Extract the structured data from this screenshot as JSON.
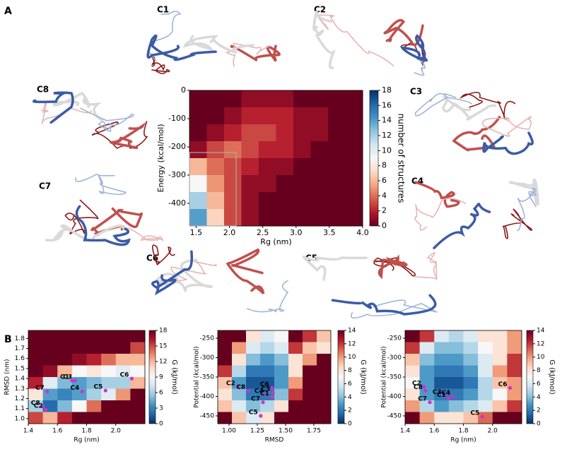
{
  "panels": [
    "A",
    "B"
  ],
  "structures": [
    "C1",
    "C2",
    "C3",
    "C4",
    "C5",
    "C6",
    "C7",
    "C8"
  ],
  "chart_data": [
    {
      "type": "heatmap",
      "xlabel": "Rg (nm)",
      "ylabel": "Energy (kcal/mol)",
      "clabel": "number of structures",
      "xlim": [
        1.4,
        4.0
      ],
      "xticks": [
        1.5,
        {
          "value": 2,
          "label": "2.0"
        },
        2.5,
        {
          "value": 3,
          "label": "3.0"
        },
        3.5,
        {
          "value": 4,
          "label": "4.0"
        }
      ],
      "ylim": [
        -480,
        0
      ],
      "yticks": [
        0,
        -100,
        -200,
        -300,
        -400
      ],
      "clim": [
        0,
        18
      ],
      "cticks": [
        0,
        2,
        4,
        6,
        8,
        10,
        12,
        14,
        16,
        18
      ],
      "colormap": [
        "#67001f",
        "#b2182b",
        "#d6604d",
        "#f4a582",
        "#fddbc7",
        "#f7f7f7",
        "#d1e5f0",
        "#92c5de",
        "#4393c3",
        "#2166ac",
        "#053061"
      ],
      "highlight": {
        "xlim": [
          1.4,
          2.1
        ],
        "ylim": [
          -480,
          -220
        ]
      },
      "z": [
        [
          0,
          0,
          0,
          1,
          1,
          1,
          0,
          0,
          0,
          0
        ],
        [
          0,
          0,
          1,
          2,
          2,
          2,
          1,
          1,
          0,
          0
        ],
        [
          0,
          1,
          2,
          3,
          3,
          2,
          1,
          1,
          0,
          0
        ],
        [
          1,
          3,
          4,
          3,
          2,
          2,
          1,
          0,
          0,
          0
        ],
        [
          6,
          4,
          3,
          2,
          1,
          1,
          0,
          0,
          0,
          0
        ],
        [
          9,
          5,
          3,
          1,
          1,
          0,
          0,
          0,
          0,
          0
        ],
        [
          12,
          6,
          3,
          1,
          0,
          0,
          0,
          0,
          0,
          0
        ],
        [
          14,
          7,
          3,
          1,
          0,
          0,
          0,
          0,
          0,
          0
        ]
      ],
      "points": []
    },
    {
      "type": "heatmap",
      "xlabel": "Rg (nm)",
      "ylabel": "RMSD (nm)",
      "clabel": "G (kJ/mol)",
      "xlim": [
        1.4,
        2.2
      ],
      "xticks": [
        1.4,
        1.6,
        1.8,
        {
          "value": 2,
          "label": "2.0"
        }
      ],
      "ylim": [
        0.95,
        1.88
      ],
      "yticks": [
        {
          "value": 1,
          "label": "1.0"
        },
        1.1,
        1.2,
        1.3,
        1.4,
        1.5,
        1.6,
        1.7,
        1.8
      ],
      "clim": [
        0,
        18
      ],
      "cticks": [
        0,
        3,
        6,
        9,
        12,
        15,
        18
      ],
      "colormap": [
        "#053061",
        "#2166ac",
        "#4393c3",
        "#92c5de",
        "#d1e5f0",
        "#f7f7f7",
        "#fddbc7",
        "#f4a582",
        "#d6604d",
        "#b2182b",
        "#67001f"
      ],
      "point_color": "#cc33cc",
      "z": [
        [
          18,
          18,
          18,
          18,
          18,
          18,
          18,
          18
        ],
        [
          18,
          18,
          18,
          18,
          18,
          18,
          18,
          15
        ],
        [
          18,
          18,
          18,
          17,
          16,
          14,
          12,
          12
        ],
        [
          18,
          17,
          12,
          9,
          10,
          9,
          8,
          9
        ],
        [
          16,
          8,
          5,
          4,
          5,
          6,
          6,
          12
        ],
        [
          10,
          4,
          3,
          4,
          6,
          8,
          13,
          18
        ],
        [
          6,
          2,
          5,
          9,
          14,
          18,
          18,
          18
        ],
        [
          15,
          12,
          16,
          18,
          18,
          18,
          18,
          18
        ]
      ],
      "points": [
        {
          "label": "C1",
          "x": 1.7,
          "y": 1.38
        },
        {
          "label": "C3",
          "x": 1.72,
          "y": 1.38
        },
        {
          "label": "C7",
          "x": 1.53,
          "y": 1.27
        },
        {
          "label": "C4",
          "x": 1.77,
          "y": 1.27
        },
        {
          "label": "C5",
          "x": 1.93,
          "y": 1.28
        },
        {
          "label": "C6",
          "x": 2.11,
          "y": 1.4
        },
        {
          "label": "C8",
          "x": 1.5,
          "y": 1.12
        },
        {
          "label": "C2",
          "x": 1.52,
          "y": 1.09
        }
      ]
    },
    {
      "type": "heatmap",
      "xlabel": "RMSD",
      "ylabel": "Potential (kcal/mol)",
      "clabel": "G (kJ/mol)",
      "xlim": [
        0.9,
        1.9
      ],
      "xticks": [
        {
          "value": 1,
          "label": "1.00"
        },
        1.25,
        {
          "value": 1.5,
          "label": "1.50"
        },
        1.75
      ],
      "ylim": [
        -470,
        -230
      ],
      "yticks": [
        -250,
        -300,
        -350,
        -400,
        -450
      ],
      "clim": [
        0,
        14
      ],
      "cticks": [
        0,
        2,
        4,
        6,
        8,
        10,
        12,
        14
      ],
      "colormap": [
        "#053061",
        "#2166ac",
        "#4393c3",
        "#92c5de",
        "#d1e5f0",
        "#f7f7f7",
        "#fddbc7",
        "#f4a582",
        "#d6604d",
        "#b2182b",
        "#67001f"
      ],
      "point_color": "#cc33cc",
      "z": [
        [
          14,
          14,
          8,
          6,
          7,
          14,
          12,
          9
        ],
        [
          14,
          10,
          6,
          5,
          6,
          12,
          9,
          8
        ],
        [
          14,
          8,
          4,
          3,
          4,
          8,
          10,
          14
        ],
        [
          12,
          5,
          2,
          2,
          3,
          8,
          14,
          14
        ],
        [
          9,
          3,
          1,
          1,
          3,
          10,
          14,
          14
        ],
        [
          8,
          4,
          2,
          2,
          4,
          12,
          14,
          14
        ],
        [
          9,
          6,
          4,
          5,
          8,
          14,
          14,
          14
        ],
        [
          14,
          9,
          6,
          8,
          14,
          14,
          14,
          14
        ]
      ],
      "points": [
        {
          "label": "C2",
          "x": 1.08,
          "y": -375
        },
        {
          "label": "C8",
          "x": 1.17,
          "y": -385
        },
        {
          "label": "C6",
          "x": 1.38,
          "y": -378
        },
        {
          "label": "C3",
          "x": 1.39,
          "y": -390
        },
        {
          "label": "C4",
          "x": 1.33,
          "y": -395
        },
        {
          "label": "C1",
          "x": 1.38,
          "y": -402
        },
        {
          "label": "C7",
          "x": 1.3,
          "y": -415
        },
        {
          "label": "C5",
          "x": 1.28,
          "y": -450
        }
      ]
    },
    {
      "type": "heatmap",
      "xlabel": "Rg (nm)",
      "ylabel": "Potential (kcal/mol)",
      "clabel": "G (kJ/mol)",
      "xlim": [
        1.4,
        2.2
      ],
      "xticks": [
        1.4,
        1.6,
        1.8,
        {
          "value": 2,
          "label": "2.0"
        }
      ],
      "ylim": [
        -470,
        -230
      ],
      "yticks": [
        -250,
        -300,
        -350,
        -400,
        -450
      ],
      "clim": [
        0,
        14
      ],
      "cticks": [
        0,
        2,
        4,
        6,
        8,
        10,
        12,
        14
      ],
      "colormap": [
        "#053061",
        "#2166ac",
        "#4393c3",
        "#92c5de",
        "#d1e5f0",
        "#f7f7f7",
        "#fddbc7",
        "#f4a582",
        "#d6604d",
        "#b2182b",
        "#67001f"
      ],
      "point_color": "#cc33cc",
      "z": [
        [
          14,
          12,
          6,
          5,
          6,
          8,
          8,
          10
        ],
        [
          12,
          6,
          4,
          4,
          5,
          7,
          8,
          10
        ],
        [
          9,
          4,
          3,
          3,
          4,
          6,
          8,
          12
        ],
        [
          8,
          3,
          2,
          2,
          3,
          6,
          10,
          12
        ],
        [
          7,
          3,
          1,
          1,
          2,
          5,
          9,
          10
        ],
        [
          8,
          3,
          2,
          2,
          3,
          5,
          7,
          10
        ],
        [
          10,
          5,
          3,
          4,
          5,
          6,
          9,
          12
        ],
        [
          14,
          10,
          8,
          8,
          9,
          11,
          14,
          14
        ]
      ],
      "points": [
        {
          "label": "C2",
          "x": 1.53,
          "y": -375
        },
        {
          "label": "C8",
          "x": 1.54,
          "y": -385
        },
        {
          "label": "C7",
          "x": 1.57,
          "y": -415
        },
        {
          "label": "C3",
          "x": 1.67,
          "y": -398
        },
        {
          "label": "C1",
          "x": 1.7,
          "y": -405
        },
        {
          "label": "C4",
          "x": 1.73,
          "y": -400
        },
        {
          "label": "C6",
          "x": 2.12,
          "y": -378
        },
        {
          "label": "C5",
          "x": 1.93,
          "y": -452
        }
      ]
    }
  ]
}
